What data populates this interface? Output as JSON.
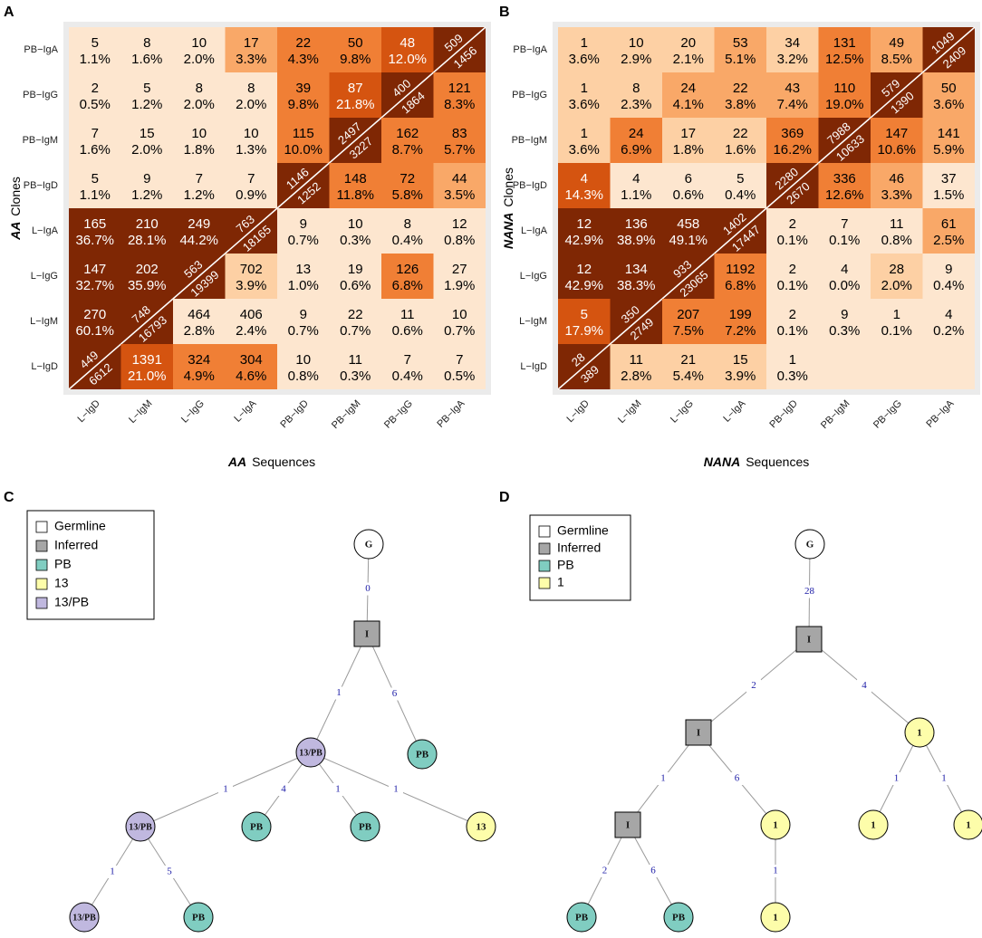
{
  "panels": {
    "A": "A",
    "B": "B",
    "C": "C",
    "D": "D"
  },
  "colors": {
    "lightest": "#fde6cf",
    "light": "#fdd0a4",
    "mid": "#f9a868",
    "orange": "#f07f35",
    "dark": "#d55410",
    "darkest": "#7f2704",
    "panel_bg": "#ebebeb",
    "germline": "#ffffff",
    "inferred": "#a6a6a6",
    "pb": "#80cdc1",
    "thirteen": "#fdfdaa",
    "thirteen_pb": "#c0b8df",
    "edge_label": "#1a1aa6"
  },
  "chart_data": [
    {
      "type": "heatmap",
      "panel": "A",
      "x_title_bold": "AA",
      "x_title_rest": "Sequences",
      "y_title_bold": "AA",
      "y_title_rest": "Clones",
      "columns": [
        "L−IgD",
        "L−IgM",
        "L−IgG",
        "L−IgA",
        "PB−IgD",
        "PB−IgM",
        "PB−IgG",
        "PB−IgA"
      ],
      "rows": [
        "PB−IgA",
        "PB−IgG",
        "PB−IgM",
        "PB−IgD",
        "L−IgA",
        "L−IgG",
        "L−IgM",
        "L−IgD"
      ],
      "cells": [
        [
          [
            "5",
            "1.1%"
          ],
          [
            "8",
            "1.6%"
          ],
          [
            "10",
            "2.0%"
          ],
          [
            "17",
            "3.3%"
          ],
          [
            "22",
            "4.3%"
          ],
          [
            "50",
            "9.8%"
          ],
          [
            "48",
            "12.0%"
          ],
          [
            "509",
            "1456"
          ]
        ],
        [
          [
            "2",
            "0.5%"
          ],
          [
            "5",
            "1.2%"
          ],
          [
            "8",
            "2.0%"
          ],
          [
            "8",
            "2.0%"
          ],
          [
            "39",
            "9.8%"
          ],
          [
            "87",
            "21.8%"
          ],
          [
            "400",
            "1864"
          ],
          [
            "121",
            "8.3%"
          ]
        ],
        [
          [
            "7",
            "1.6%"
          ],
          [
            "15",
            "2.0%"
          ],
          [
            "10",
            "1.8%"
          ],
          [
            "10",
            "1.3%"
          ],
          [
            "115",
            "10.0%"
          ],
          [
            "2497",
            "3227"
          ],
          [
            "162",
            "8.7%"
          ],
          [
            "83",
            "5.7%"
          ]
        ],
        [
          [
            "5",
            "1.1%"
          ],
          [
            "9",
            "1.2%"
          ],
          [
            "7",
            "1.2%"
          ],
          [
            "7",
            "0.9%"
          ],
          [
            "1146",
            "1252"
          ],
          [
            "148",
            "11.8%"
          ],
          [
            "72",
            "5.8%"
          ],
          [
            "44",
            "3.5%"
          ]
        ],
        [
          [
            "165",
            "36.7%"
          ],
          [
            "210",
            "28.1%"
          ],
          [
            "249",
            "44.2%"
          ],
          [
            "763",
            "18165"
          ],
          [
            "9",
            "0.7%"
          ],
          [
            "10",
            "0.3%"
          ],
          [
            "8",
            "0.4%"
          ],
          [
            "12",
            "0.8%"
          ]
        ],
        [
          [
            "147",
            "32.7%"
          ],
          [
            "202",
            "35.9%"
          ],
          [
            "563",
            "19399"
          ],
          [
            "702",
            "3.9%"
          ],
          [
            "13",
            "1.0%"
          ],
          [
            "19",
            "0.6%"
          ],
          [
            "126",
            "6.8%"
          ],
          [
            "27",
            "1.9%"
          ]
        ],
        [
          [
            "270",
            "60.1%"
          ],
          [
            "748",
            "16793"
          ],
          [
            "464",
            "2.8%"
          ],
          [
            "406",
            "2.4%"
          ],
          [
            "9",
            "0.7%"
          ],
          [
            "22",
            "0.7%"
          ],
          [
            "11",
            "0.6%"
          ],
          [
            "10",
            "0.7%"
          ]
        ],
        [
          [
            "449",
            "6612"
          ],
          [
            "1391",
            "21.0%"
          ],
          [
            "324",
            "4.9%"
          ],
          [
            "304",
            "4.6%"
          ],
          [
            "10",
            "0.8%"
          ],
          [
            "11",
            "0.3%"
          ],
          [
            "7",
            "0.4%"
          ],
          [
            "7",
            "0.5%"
          ]
        ]
      ],
      "color_levels": [
        [
          "lightest",
          "lightest",
          "lightest",
          "mid",
          "orange",
          "orange",
          "dark",
          "darkest"
        ],
        [
          "lightest",
          "lightest",
          "lightest",
          "lightest",
          "orange",
          "dark",
          "darkest",
          "orange"
        ],
        [
          "lightest",
          "lightest",
          "lightest",
          "lightest",
          "orange",
          "darkest",
          "orange",
          "orange"
        ],
        [
          "lightest",
          "lightest",
          "lightest",
          "lightest",
          "darkest",
          "orange",
          "orange",
          "mid"
        ],
        [
          "darkest",
          "darkest",
          "darkest",
          "darkest",
          "lightest",
          "lightest",
          "lightest",
          "lightest"
        ],
        [
          "darkest",
          "darkest",
          "darkest",
          "light",
          "lightest",
          "lightest",
          "orange",
          "lightest"
        ],
        [
          "darkest",
          "darkest",
          "lightest",
          "lightest",
          "lightest",
          "lightest",
          "lightest",
          "lightest"
        ],
        [
          "darkest",
          "dark",
          "orange",
          "orange",
          "lightest",
          "lightest",
          "lightest",
          "lightest"
        ]
      ]
    },
    {
      "type": "heatmap",
      "panel": "B",
      "x_title_bold": "NANA",
      "x_title_rest": "Sequences",
      "y_title_bold": "NANA",
      "y_title_rest": "Clones",
      "columns": [
        "L−IgD",
        "L−IgM",
        "L−IgG",
        "L−IgA",
        "PB−IgD",
        "PB−IgM",
        "PB−IgG",
        "PB−IgA"
      ],
      "rows": [
        "PB−IgA",
        "PB−IgG",
        "PB−IgM",
        "PB−IgD",
        "L−IgA",
        "L−IgG",
        "L−IgM",
        "L−IgD"
      ],
      "cells": [
        [
          [
            "1",
            "3.6%"
          ],
          [
            "10",
            "2.9%"
          ],
          [
            "20",
            "2.1%"
          ],
          [
            "53",
            "5.1%"
          ],
          [
            "34",
            "3.2%"
          ],
          [
            "131",
            "12.5%"
          ],
          [
            "49",
            "8.5%"
          ],
          [
            "1049",
            "2409"
          ]
        ],
        [
          [
            "1",
            "3.6%"
          ],
          [
            "8",
            "2.3%"
          ],
          [
            "24",
            "4.1%"
          ],
          [
            "22",
            "3.8%"
          ],
          [
            "43",
            "7.4%"
          ],
          [
            "110",
            "19.0%"
          ],
          [
            "579",
            "1390"
          ],
          [
            "50",
            "3.6%"
          ]
        ],
        [
          [
            "1",
            "3.6%"
          ],
          [
            "24",
            "6.9%"
          ],
          [
            "17",
            "1.8%"
          ],
          [
            "22",
            "1.6%"
          ],
          [
            "369",
            "16.2%"
          ],
          [
            "7988",
            "10633"
          ],
          [
            "147",
            "10.6%"
          ],
          [
            "141",
            "5.9%"
          ]
        ],
        [
          [
            "4",
            "14.3%"
          ],
          [
            "4",
            "1.1%"
          ],
          [
            "6",
            "0.6%"
          ],
          [
            "5",
            "0.4%"
          ],
          [
            "2280",
            "2670"
          ],
          [
            "336",
            "12.6%"
          ],
          [
            "46",
            "3.3%"
          ],
          [
            "37",
            "1.5%"
          ]
        ],
        [
          [
            "12",
            "42.9%"
          ],
          [
            "136",
            "38.9%"
          ],
          [
            "458",
            "49.1%"
          ],
          [
            "1402",
            "17447"
          ],
          [
            "2",
            "0.1%"
          ],
          [
            "7",
            "0.1%"
          ],
          [
            "11",
            "0.8%"
          ],
          [
            "61",
            "2.5%"
          ]
        ],
        [
          [
            "12",
            "42.9%"
          ],
          [
            "134",
            "38.3%"
          ],
          [
            "933",
            "23065"
          ],
          [
            "1192",
            "6.8%"
          ],
          [
            "2",
            "0.1%"
          ],
          [
            "4",
            "0.0%"
          ],
          [
            "28",
            "2.0%"
          ],
          [
            "9",
            "0.4%"
          ]
        ],
        [
          [
            "5",
            "17.9%"
          ],
          [
            "350",
            "2749"
          ],
          [
            "207",
            "7.5%"
          ],
          [
            "199",
            "7.2%"
          ],
          [
            "2",
            "0.1%"
          ],
          [
            "9",
            "0.3%"
          ],
          [
            "1",
            "0.1%"
          ],
          [
            "4",
            "0.2%"
          ]
        ],
        [
          [
            "28",
            "389"
          ],
          [
            "11",
            "2.8%"
          ],
          [
            "21",
            "5.4%"
          ],
          [
            "15",
            "3.9%"
          ],
          [
            "1",
            "0.3%"
          ],
          [
            "",
            ""
          ],
          [
            "",
            ""
          ],
          [
            "",
            ""
          ]
        ]
      ],
      "color_levels": [
        [
          "light",
          "light",
          "light",
          "mid",
          "light",
          "orange",
          "mid",
          "darkest"
        ],
        [
          "light",
          "light",
          "mid",
          "mid",
          "mid",
          "orange",
          "darkest",
          "mid"
        ],
        [
          "light",
          "orange",
          "light",
          "light",
          "orange",
          "darkest",
          "orange",
          "mid"
        ],
        [
          "dark",
          "lightest",
          "lightest",
          "lightest",
          "darkest",
          "orange",
          "mid",
          "lightest"
        ],
        [
          "darkest",
          "darkest",
          "darkest",
          "darkest",
          "lightest",
          "lightest",
          "lightest",
          "mid"
        ],
        [
          "darkest",
          "darkest",
          "darkest",
          "orange",
          "lightest",
          "lightest",
          "light",
          "lightest"
        ],
        [
          "dark",
          "darkest",
          "orange",
          "orange",
          "lightest",
          "lightest",
          "lightest",
          "lightest"
        ],
        [
          "darkest",
          "light",
          "light",
          "light",
          "lightest",
          "lightest",
          "lightest",
          "lightest"
        ]
      ]
    }
  ],
  "trees": {
    "C": {
      "legend": [
        {
          "label": "Germline",
          "color": "#ffffff"
        },
        {
          "label": "Inferred",
          "color": "#a6a6a6"
        },
        {
          "label": "PB",
          "color": "#80cdc1"
        },
        {
          "label": "13",
          "color": "#fdfdaa"
        },
        {
          "label": "13/PB",
          "color": "#c0b8df"
        }
      ],
      "nodes": [
        {
          "id": "g",
          "label": "G",
          "kind": "germline"
        },
        {
          "id": "i1",
          "label": "I",
          "kind": "inferred"
        },
        {
          "id": "n13pb_a",
          "label": "13/PB",
          "kind": "thirteen_pb"
        },
        {
          "id": "pb_a",
          "label": "PB",
          "kind": "pb"
        },
        {
          "id": "n13pb_b",
          "label": "13/PB",
          "kind": "thirteen_pb"
        },
        {
          "id": "pb_b",
          "label": "PB",
          "kind": "pb"
        },
        {
          "id": "pb_c",
          "label": "PB",
          "kind": "pb"
        },
        {
          "id": "n13_a",
          "label": "13",
          "kind": "thirteen"
        },
        {
          "id": "n13pb_c",
          "label": "13/PB",
          "kind": "thirteen_pb"
        },
        {
          "id": "pb_d",
          "label": "PB",
          "kind": "pb"
        }
      ],
      "edges": [
        {
          "from": "g",
          "to": "i1",
          "label": "0"
        },
        {
          "from": "i1",
          "to": "n13pb_a",
          "label": "1"
        },
        {
          "from": "i1",
          "to": "pb_a",
          "label": "6"
        },
        {
          "from": "n13pb_a",
          "to": "n13pb_b",
          "label": "1"
        },
        {
          "from": "n13pb_a",
          "to": "pb_b",
          "label": "4"
        },
        {
          "from": "n13pb_a",
          "to": "pb_c",
          "label": "1"
        },
        {
          "from": "n13pb_a",
          "to": "n13_a",
          "label": "1"
        },
        {
          "from": "n13pb_b",
          "to": "n13pb_c",
          "label": "1"
        },
        {
          "from": "n13pb_b",
          "to": "pb_d",
          "label": "5"
        }
      ]
    },
    "D": {
      "legend": [
        {
          "label": "Germline",
          "color": "#ffffff"
        },
        {
          "label": "Inferred",
          "color": "#a6a6a6"
        },
        {
          "label": "PB",
          "color": "#80cdc1"
        },
        {
          "label": "1",
          "color": "#fdfdaa"
        }
      ],
      "nodes": [
        {
          "id": "g",
          "label": "G",
          "kind": "germline"
        },
        {
          "id": "i1",
          "label": "I",
          "kind": "inferred"
        },
        {
          "id": "i2",
          "label": "I",
          "kind": "inferred"
        },
        {
          "id": "one_a",
          "label": "1",
          "kind": "thirteen"
        },
        {
          "id": "i3",
          "label": "I",
          "kind": "inferred"
        },
        {
          "id": "one_b",
          "label": "1",
          "kind": "thirteen"
        },
        {
          "id": "one_c",
          "label": "1",
          "kind": "thirteen"
        },
        {
          "id": "one_d",
          "label": "1",
          "kind": "thirteen"
        },
        {
          "id": "pb_a",
          "label": "PB",
          "kind": "pb"
        },
        {
          "id": "pb_b",
          "label": "PB",
          "kind": "pb"
        },
        {
          "id": "one_e",
          "label": "1",
          "kind": "thirteen"
        }
      ],
      "edges": [
        {
          "from": "g",
          "to": "i1",
          "label": "28"
        },
        {
          "from": "i1",
          "to": "i2",
          "label": "2"
        },
        {
          "from": "i1",
          "to": "one_a",
          "label": "4"
        },
        {
          "from": "i2",
          "to": "i3",
          "label": "1"
        },
        {
          "from": "i2",
          "to": "one_b",
          "label": "6"
        },
        {
          "from": "one_a",
          "to": "one_c",
          "label": "1"
        },
        {
          "from": "one_a",
          "to": "one_d",
          "label": "1"
        },
        {
          "from": "i3",
          "to": "pb_a",
          "label": "2"
        },
        {
          "from": "i3",
          "to": "pb_b",
          "label": "6"
        },
        {
          "from": "one_b",
          "to": "one_e",
          "label": "1"
        }
      ]
    }
  }
}
